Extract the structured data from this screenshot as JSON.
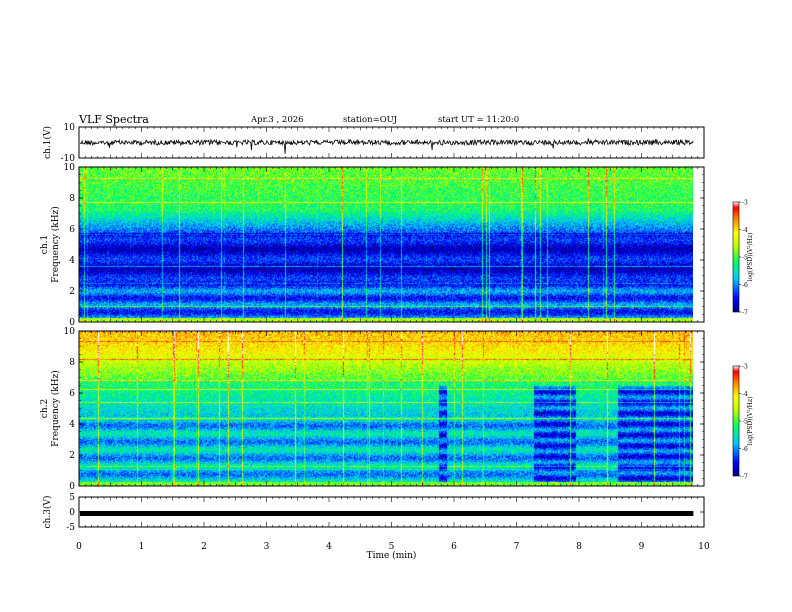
{
  "header": {
    "title": "VLF Spectra",
    "date": "Apr.3 , 2026",
    "station": "station=OUJ",
    "start_ut": "start UT = 11:20:0"
  },
  "colors": {
    "spectrogram_scale": [
      "#000080",
      "#0000ff",
      "#00a0ff",
      "#00ffff",
      "#00ff40",
      "#a0ff00",
      "#ffff00",
      "#ffa000",
      "#ff0000",
      "#ffffff"
    ]
  },
  "chart_data": [
    {
      "type": "line",
      "panel": "ch1-waveform",
      "ylabel": "ch.1(V)",
      "ylim": [
        -10,
        10
      ],
      "yticks": [
        "10",
        "-10"
      ],
      "baseline_value": 0,
      "xlim": [
        0,
        10
      ]
    },
    {
      "type": "heatmap",
      "panel": "ch1-spectrogram",
      "ylabel_channel": "ch.1",
      "ylabel": "Frequency (kHz)",
      "ylim": [
        0,
        10
      ],
      "yticks": [
        "0",
        "2",
        "4",
        "6",
        "8",
        "10"
      ],
      "xlim": [
        0,
        10
      ],
      "data_x_end": 9.83,
      "colorbar": {
        "label": "log(PSD)(V²/Hz)",
        "range": [
          -7,
          -3
        ],
        "ticks": [
          "-3",
          "-4",
          "-5",
          "-6",
          "-7"
        ]
      }
    },
    {
      "type": "heatmap",
      "panel": "ch2-spectrogram",
      "ylabel_channel": "ch.2",
      "ylabel": "Frequency (kHz)",
      "ylim": [
        0,
        10
      ],
      "yticks": [
        "0",
        "2",
        "4",
        "6",
        "8",
        "10"
      ],
      "xlim": [
        0,
        10
      ],
      "data_x_end": 9.83,
      "gaps_min": [
        [
          5.75,
          5.88
        ],
        [
          7.28,
          7.95
        ],
        [
          8.62,
          9.83
        ]
      ],
      "colorbar": {
        "label": "log(PSD)(V²/Hz)",
        "range": [
          -7,
          -3
        ],
        "ticks": [
          "-3",
          "-4",
          "-5",
          "-6",
          "-7"
        ]
      }
    },
    {
      "type": "line",
      "panel": "ch3-waveform",
      "ylabel": "ch.3(V)",
      "ylim": [
        -5,
        5
      ],
      "yticks": [
        "5",
        "0",
        "-5"
      ],
      "baseline_value": -0.5,
      "xlim": [
        0,
        10
      ],
      "xlabel": "Time (min)",
      "xticks": [
        "0",
        "1",
        "2",
        "3",
        "4",
        "5",
        "6",
        "7",
        "8",
        "9",
        "10"
      ]
    }
  ]
}
